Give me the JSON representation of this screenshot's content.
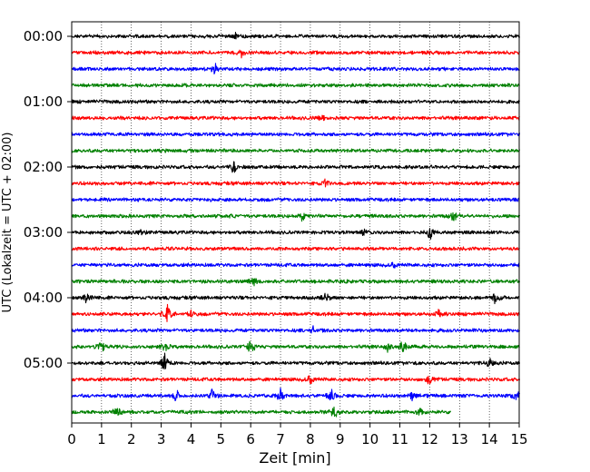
{
  "chart_data": {
    "type": "line",
    "title": "",
    "xlabel": "Zeit  [min]",
    "ylabel": "UTC (Lokalzeit = UTC + 02:00)",
    "xlim": [
      0,
      15
    ],
    "x_ticks": [
      "0",
      "1",
      "2",
      "3",
      "4",
      "5",
      "6",
      "7",
      "8",
      "9",
      "10",
      "11",
      "12",
      "13",
      "14",
      "15"
    ],
    "y_ticks": [
      {
        "label": "00:00",
        "row": 0
      },
      {
        "label": "01:00",
        "row": 4
      },
      {
        "label": "02:00",
        "row": 8
      },
      {
        "label": "03:00",
        "row": 12
      },
      {
        "label": "04:00",
        "row": 16
      },
      {
        "label": "05:00",
        "row": 20
      }
    ],
    "grid": "vertical dotted",
    "rows_per_hour": 4,
    "minutes_per_row": 15,
    "trace_colors": [
      "#000000",
      "#ff0000",
      "#0000ff",
      "#008000"
    ],
    "traces": [
      {
        "start": "00:00",
        "end_min": 15,
        "events": [
          [
            5.5,
            4
          ]
        ]
      },
      {
        "start": "00:15",
        "end_min": 15,
        "events": [
          [
            5.7,
            6
          ]
        ]
      },
      {
        "start": "00:30",
        "end_min": 15,
        "events": [
          [
            4.8,
            7
          ]
        ]
      },
      {
        "start": "00:45",
        "end_min": 15,
        "events": []
      },
      {
        "start": "01:00",
        "end_min": 15,
        "events": []
      },
      {
        "start": "01:15",
        "end_min": 15,
        "events": [
          [
            8.4,
            4
          ]
        ]
      },
      {
        "start": "01:30",
        "end_min": 15,
        "events": []
      },
      {
        "start": "01:45",
        "end_min": 15,
        "events": []
      },
      {
        "start": "02:00",
        "end_min": 15,
        "events": [
          [
            5.4,
            10
          ]
        ]
      },
      {
        "start": "02:15",
        "end_min": 15,
        "events": [
          [
            8.5,
            5
          ]
        ]
      },
      {
        "start": "02:30",
        "end_min": 15,
        "events": []
      },
      {
        "start": "02:45",
        "end_min": 15,
        "events": [
          [
            5.4,
            4
          ],
          [
            7.7,
            8
          ],
          [
            12.8,
            10
          ]
        ]
      },
      {
        "start": "03:00",
        "end_min": 15,
        "events": [
          [
            2.3,
            4
          ],
          [
            9.8,
            4
          ],
          [
            12.0,
            10
          ]
        ]
      },
      {
        "start": "03:15",
        "end_min": 15,
        "events": []
      },
      {
        "start": "03:30",
        "end_min": 15,
        "events": [
          [
            10.8,
            6
          ]
        ]
      },
      {
        "start": "03:45",
        "end_min": 15,
        "events": [
          [
            6.1,
            7
          ]
        ]
      },
      {
        "start": "04:00",
        "end_min": 15,
        "events": [
          [
            0.5,
            9
          ],
          [
            8.5,
            10
          ],
          [
            14.2,
            10
          ]
        ]
      },
      {
        "start": "04:15",
        "end_min": 15,
        "events": [
          [
            3.2,
            12
          ],
          [
            4.0,
            5
          ],
          [
            12.3,
            5
          ]
        ]
      },
      {
        "start": "04:30",
        "end_min": 15,
        "events": [
          [
            8.1,
            4
          ]
        ]
      },
      {
        "start": "04:45",
        "end_min": 15,
        "events": [
          [
            1.0,
            8
          ],
          [
            3.1,
            10
          ],
          [
            6.0,
            11
          ],
          [
            10.6,
            7
          ],
          [
            11.1,
            8
          ]
        ]
      },
      {
        "start": "05:00",
        "end_min": 15,
        "events": [
          [
            3.1,
            14
          ],
          [
            14.0,
            8
          ]
        ]
      },
      {
        "start": "05:15",
        "end_min": 15,
        "events": [
          [
            8.0,
            10
          ],
          [
            12.0,
            10
          ]
        ]
      },
      {
        "start": "05:30",
        "end_min": 15,
        "events": [
          [
            3.5,
            8
          ],
          [
            4.7,
            8
          ],
          [
            7.0,
            8
          ],
          [
            8.7,
            8
          ],
          [
            11.4,
            7
          ],
          [
            14.9,
            6
          ]
        ]
      },
      {
        "start": "05:45",
        "end_min": 12.7,
        "events": [
          [
            1.5,
            8
          ],
          [
            8.8,
            12
          ],
          [
            11.7,
            7
          ]
        ]
      }
    ]
  }
}
